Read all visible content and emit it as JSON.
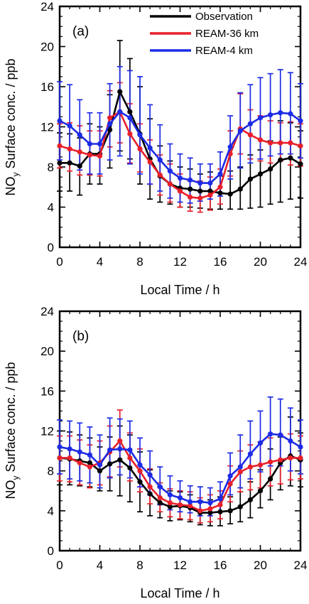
{
  "chart_data": [
    {
      "type": "line",
      "panel_label": "(a)",
      "xlabel": "Local Time / h",
      "ylabel_main": "NO",
      "ylabel_sub": "y",
      "ylabel_rest": " Surface conc. / ppb",
      "xlim": [
        0,
        24
      ],
      "ylim": [
        0,
        24
      ],
      "xticks": [
        "0",
        "4",
        "8",
        "12",
        "16",
        "20",
        "24"
      ],
      "yticks": [
        "0",
        "4",
        "8",
        "12",
        "16",
        "20",
        "24"
      ],
      "legend_position": "top-right",
      "x": [
        0,
        1,
        2,
        3,
        4,
        5,
        6,
        7,
        8,
        9,
        10,
        11,
        12,
        13,
        14,
        15,
        16,
        17,
        18,
        19,
        20,
        21,
        22,
        23,
        24
      ],
      "series": [
        {
          "name": "Observation",
          "color": "#000000",
          "values": [
            8.4,
            8.4,
            8.1,
            9.3,
            9.3,
            11.7,
            15.5,
            13.5,
            11.3,
            8.8,
            7.1,
            6.3,
            5.9,
            5.8,
            5.6,
            5.6,
            5.4,
            5.3,
            5.8,
            6.8,
            7.3,
            7.8,
            8.7,
            8.9,
            8.3
          ],
          "err_low": [
            5.6,
            5.6,
            5.2,
            6.3,
            6.3,
            7.9,
            9.6,
            8.8,
            6.3,
            4.8,
            4.5,
            4.3,
            4.0,
            4.0,
            3.9,
            3.8,
            3.8,
            3.8,
            3.8,
            3.9,
            4.0,
            4.3,
            4.5,
            4.8,
            4.9
          ],
          "err_high": [
            11.4,
            11.3,
            10.9,
            12.3,
            12.0,
            15.2,
            20.6,
            18.8,
            16.0,
            12.8,
            10.1,
            8.6,
            8.0,
            7.8,
            7.3,
            7.5,
            7.1,
            7.6,
            8.0,
            9.2,
            9.7,
            10.6,
            12.6,
            12.4,
            11.6
          ]
        },
        {
          "name": "REAM-36 km",
          "color": "#e8202a",
          "values": [
            10.1,
            9.8,
            9.5,
            9.2,
            9.1,
            12.9,
            13.5,
            11.3,
            9.8,
            8.5,
            7.2,
            6.3,
            5.6,
            5.0,
            4.9,
            5.2,
            6.0,
            9.3,
            11.8,
            11.2,
            10.7,
            10.4,
            10.4,
            10.4,
            10.1
          ],
          "err_low": [
            7.9,
            7.6,
            7.2,
            7.2,
            7.1,
            10.0,
            10.4,
            8.4,
            7.5,
            6.3,
            5.2,
            4.5,
            4.0,
            3.6,
            3.5,
            3.7,
            4.3,
            7.1,
            9.3,
            8.8,
            8.6,
            8.4,
            8.6,
            8.2,
            8.1
          ],
          "err_high": [
            12.3,
            12.4,
            12.1,
            11.6,
            11.6,
            15.6,
            16.4,
            14.3,
            12.3,
            10.7,
            9.2,
            8.3,
            7.3,
            6.6,
            6.6,
            7.0,
            7.8,
            11.6,
            15.3,
            13.7,
            13.1,
            12.6,
            12.4,
            12.5,
            12.3
          ]
        },
        {
          "name": "REAM-4 km",
          "color": "#1c2be6",
          "values": [
            12.6,
            12.1,
            11.2,
            10.3,
            10.3,
            12.3,
            13.5,
            12.9,
            11.2,
            9.9,
            8.7,
            7.6,
            6.9,
            6.7,
            6.4,
            6.4,
            7.3,
            10.0,
            11.6,
            12.3,
            12.9,
            13.2,
            13.4,
            13.3,
            12.6
          ],
          "err_low": [
            8.7,
            8.4,
            7.7,
            7.3,
            7.3,
            8.7,
            9.1,
            8.3,
            7.3,
            6.3,
            5.6,
            4.9,
            4.5,
            4.4,
            4.6,
            4.8,
            5.1,
            6.8,
            7.9,
            8.4,
            8.8,
            9.1,
            9.3,
            9.3,
            8.9
          ],
          "err_high": [
            16.5,
            16.2,
            14.7,
            13.4,
            13.4,
            16.3,
            18.0,
            17.6,
            17.0,
            14.2,
            12.2,
            10.3,
            9.3,
            8.9,
            8.3,
            8.3,
            9.5,
            13.1,
            15.4,
            16.2,
            16.9,
            17.3,
            17.7,
            17.4,
            16.3
          ]
        }
      ]
    },
    {
      "type": "line",
      "panel_label": "(b)",
      "xlabel": "Local Time / h",
      "ylabel_main": "NO",
      "ylabel_sub": "y",
      "ylabel_rest": " Surface conc. / ppb",
      "xlim": [
        0,
        24
      ],
      "ylim": [
        0,
        24
      ],
      "xticks": [
        "0",
        "4",
        "8",
        "12",
        "16",
        "20",
        "24"
      ],
      "yticks": [
        "0",
        "4",
        "8",
        "12",
        "16",
        "20",
        "24"
      ],
      "x": [
        0,
        1,
        2,
        3,
        4,
        5,
        6,
        7,
        8,
        9,
        10,
        11,
        12,
        13,
        14,
        15,
        16,
        17,
        18,
        19,
        20,
        21,
        22,
        23,
        24
      ],
      "series": [
        {
          "name": "Observation",
          "color": "#000000",
          "values": [
            9.3,
            9.2,
            9.0,
            8.8,
            8.0,
            8.7,
            9.1,
            8.3,
            6.9,
            5.7,
            4.8,
            4.4,
            4.5,
            4.3,
            3.8,
            3.8,
            3.9,
            4.0,
            4.4,
            5.1,
            6.0,
            7.2,
            8.8,
            9.5,
            9.1
          ],
          "err_low": [
            6.6,
            6.6,
            6.5,
            6.4,
            6.0,
            6.0,
            5.5,
            4.9,
            3.9,
            3.5,
            3.3,
            3.0,
            3.1,
            2.9,
            2.6,
            2.5,
            2.5,
            2.7,
            2.9,
            3.3,
            4.3,
            5.1,
            6.1,
            6.5,
            6.4
          ],
          "err_high": [
            12.0,
            11.9,
            11.6,
            11.3,
            10.4,
            11.4,
            12.5,
            11.6,
            9.9,
            8.1,
            6.4,
            6.0,
            5.9,
            5.6,
            5.0,
            5.1,
            5.4,
            5.4,
            5.9,
            6.9,
            8.1,
            10.2,
            11.4,
            13.4,
            11.8
          ]
        },
        {
          "name": "REAM-36 km",
          "color": "#e8202a",
          "values": [
            9.3,
            9.3,
            8.8,
            8.4,
            8.8,
            9.9,
            11.0,
            9.3,
            8.0,
            6.4,
            5.3,
            4.8,
            4.6,
            4.5,
            4.0,
            4.2,
            4.6,
            6.7,
            7.9,
            8.4,
            8.6,
            8.9,
            9.1,
            9.3,
            9.3
          ],
          "err_low": [
            7.0,
            6.9,
            6.6,
            6.3,
            6.6,
            7.4,
            8.4,
            7.0,
            5.9,
            4.7,
            3.9,
            3.4,
            3.2,
            3.1,
            2.8,
            2.9,
            3.2,
            4.9,
            5.9,
            6.1,
            6.3,
            6.5,
            6.7,
            7.1,
            7.2
          ],
          "err_high": [
            11.5,
            11.5,
            11.1,
            10.6,
            11.0,
            12.5,
            14.1,
            11.8,
            10.2,
            8.2,
            6.8,
            6.2,
            6.0,
            5.9,
            5.3,
            5.6,
            6.0,
            8.5,
            10.0,
            10.6,
            10.9,
            11.3,
            11.6,
            11.7,
            11.5
          ]
        },
        {
          "name": "REAM-4 km",
          "color": "#1c2be6",
          "values": [
            10.4,
            10.2,
            9.9,
            9.6,
            8.6,
            10.1,
            10.2,
            10.1,
            8.6,
            7.6,
            6.4,
            5.6,
            5.3,
            4.9,
            4.9,
            4.8,
            5.2,
            7.5,
            8.4,
            9.7,
            10.8,
            11.7,
            11.6,
            11.0,
            10.4
          ],
          "err_low": [
            7.7,
            7.2,
            7.0,
            6.8,
            6.3,
            7.3,
            7.6,
            7.3,
            6.4,
            5.6,
            4.6,
            4.1,
            3.9,
            3.8,
            3.5,
            3.5,
            3.9,
            5.6,
            6.3,
            7.2,
            7.9,
            8.5,
            8.5,
            8.0,
            7.7
          ],
          "err_high": [
            13.1,
            13.0,
            12.8,
            12.4,
            11.6,
            13.3,
            13.2,
            13.0,
            11.3,
            10.0,
            8.4,
            7.5,
            7.0,
            6.5,
            6.4,
            6.3,
            6.9,
            9.8,
            11.6,
            13.0,
            14.0,
            15.4,
            15.2,
            14.3,
            13.1
          ]
        }
      ]
    }
  ]
}
